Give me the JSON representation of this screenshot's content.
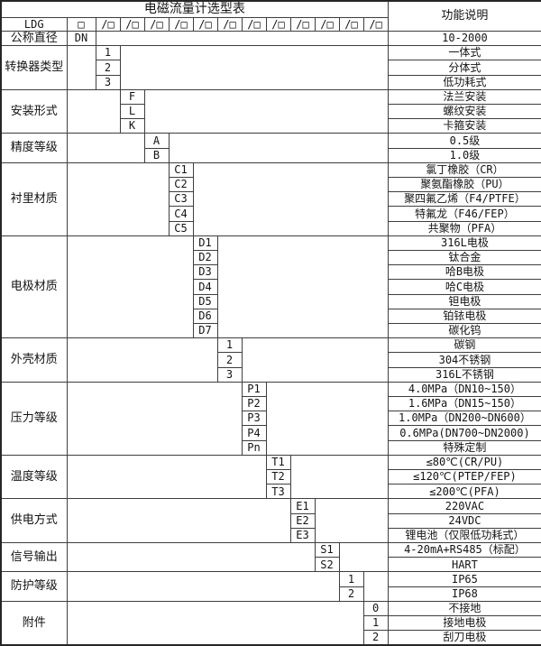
{
  "table": {
    "title": "电磁流量计选型表",
    "function_header": "功能说明",
    "model_prefix": "LDG",
    "box": "□",
    "slot": "/□",
    "slot_count": 12,
    "groups": [
      {
        "category": "公称直径",
        "code_col": 0,
        "rows": [
          {
            "code": "DN",
            "desc": "10-2000"
          }
        ]
      },
      {
        "category": "转换器类型",
        "code_col": 1,
        "rows": [
          {
            "code": "1",
            "desc": "一体式"
          },
          {
            "code": "2",
            "desc": "分体式"
          },
          {
            "code": "3",
            "desc": "低功耗式"
          }
        ]
      },
      {
        "category": "安装形式",
        "code_col": 2,
        "rows": [
          {
            "code": "F",
            "desc": "法兰安装"
          },
          {
            "code": "L",
            "desc": "螺纹安装"
          },
          {
            "code": "K",
            "desc": "卡箍安装"
          }
        ]
      },
      {
        "category": "精度等级",
        "code_col": 3,
        "rows": [
          {
            "code": "A",
            "desc": "0.5级"
          },
          {
            "code": "B",
            "desc": "1.0级"
          }
        ]
      },
      {
        "category": "衬里材质",
        "code_col": 4,
        "rows": [
          {
            "code": "C1",
            "desc": "氯丁橡胶（CR）"
          },
          {
            "code": "C2",
            "desc": "聚氨酯橡胶（PU）"
          },
          {
            "code": "C3",
            "desc": "聚四氟乙烯（F4/PTFE）"
          },
          {
            "code": "C4",
            "desc": "特氟龙（F46/FEP）"
          },
          {
            "code": "C5",
            "desc": "共聚物（PFA）"
          }
        ]
      },
      {
        "category": "电极材质",
        "code_col": 5,
        "rows": [
          {
            "code": "D1",
            "desc": "316L电极"
          },
          {
            "code": "D2",
            "desc": "钛合金"
          },
          {
            "code": "D3",
            "desc": "哈B电极"
          },
          {
            "code": "D4",
            "desc": "哈C电极"
          },
          {
            "code": "D5",
            "desc": "钽电极"
          },
          {
            "code": "D6",
            "desc": "铂铱电极"
          },
          {
            "code": "D7",
            "desc": "碳化钨"
          }
        ]
      },
      {
        "category": "外壳材质",
        "code_col": 6,
        "rows": [
          {
            "code": "1",
            "desc": "碳钢"
          },
          {
            "code": "2",
            "desc": "304不锈钢"
          },
          {
            "code": "3",
            "desc": "316L不锈钢"
          }
        ]
      },
      {
        "category": "压力等级",
        "code_col": 7,
        "rows": [
          {
            "code": "P1",
            "desc": "4.0MPa（DN10~150）"
          },
          {
            "code": "P2",
            "desc": "1.6MPa（DN15~150）"
          },
          {
            "code": "P3",
            "desc": "1.0MPa（DN200~DN600）"
          },
          {
            "code": "P4",
            "desc": "0.6MPa(DN700~DN2000)"
          },
          {
            "code": "Pn",
            "desc": "特殊定制"
          }
        ]
      },
      {
        "category": "温度等级",
        "code_col": 8,
        "rows": [
          {
            "code": "T1",
            "desc": "≤80℃(CR/PU)"
          },
          {
            "code": "T2",
            "desc": "≤120℃(PTEP/FEP)"
          },
          {
            "code": "T3",
            "desc": "≤200℃(PFA)"
          }
        ]
      },
      {
        "category": "供电方式",
        "code_col": 9,
        "rows": [
          {
            "code": "E1",
            "desc": "220VAC"
          },
          {
            "code": "E2",
            "desc": "24VDC"
          },
          {
            "code": "E3",
            "desc": "锂电池（仅限低功耗式）"
          }
        ]
      },
      {
        "category": "信号输出",
        "code_col": 10,
        "rows": [
          {
            "code": "S1",
            "desc": "4-20mA+RS485（标配）"
          },
          {
            "code": "S2",
            "desc": "HART"
          }
        ]
      },
      {
        "category": "防护等级",
        "code_col": 11,
        "rows": [
          {
            "code": "1",
            "desc": "IP65"
          },
          {
            "code": "2",
            "desc": "IP68"
          }
        ]
      },
      {
        "category": "附件",
        "code_col": 12,
        "rows": [
          {
            "code": "0",
            "desc": "不接地"
          },
          {
            "code": "1",
            "desc": "接地电极"
          },
          {
            "code": "2",
            "desc": "刮刀电极"
          }
        ]
      }
    ]
  }
}
